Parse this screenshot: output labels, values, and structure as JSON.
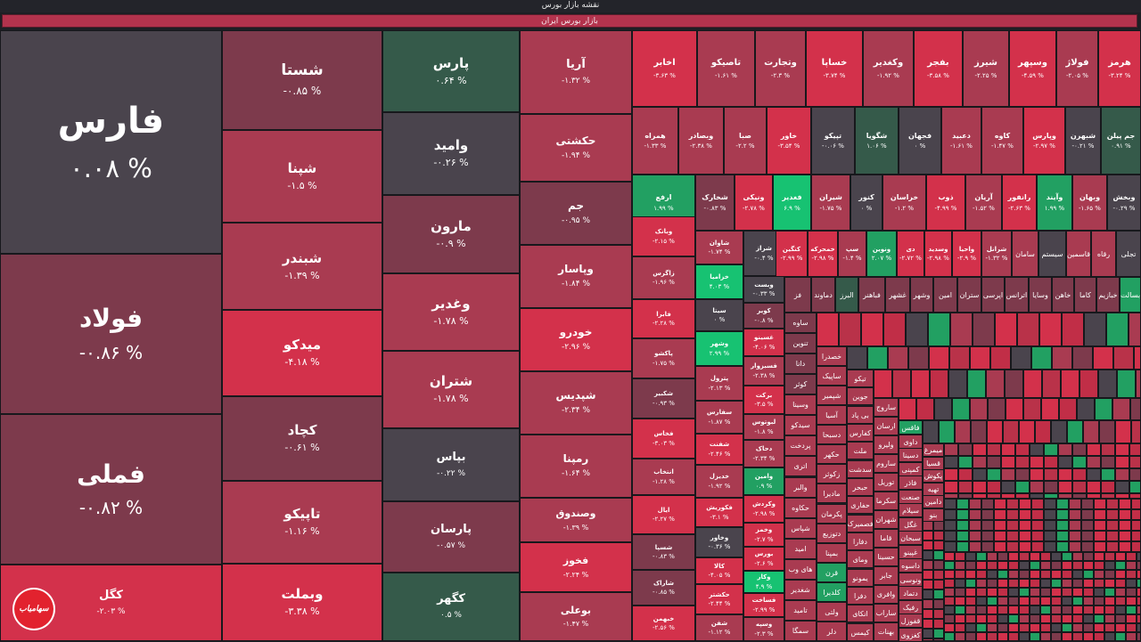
{
  "header": {
    "title": "نقشه بازار بورس"
  },
  "sector": {
    "label": "بازار بورس ایران"
  },
  "logo": {
    "text": "سهامیاب"
  },
  "colors": {
    "neg_strong": "#d3314b",
    "neg_mid": "#a93b51",
    "neg_light": "#7d3a4c",
    "neutral": "#4a444d",
    "pos_light": "#355a4a",
    "pos_strong": "#22a062",
    "pos_bright": "#17c272"
  },
  "big_tiles": [
    {
      "name": "فارس",
      "pct": "۰.۰۸ %",
      "tone": "neutral"
    },
    {
      "name": "فولاد",
      "pct": "-۰.۸۶ %",
      "tone": "neg_light"
    },
    {
      "name": "فملی",
      "pct": "-۰.۸۲ %",
      "tone": "neg_light"
    },
    {
      "name": "کگل",
      "pct": "-۲.۰۳ %",
      "tone": "neg_strong"
    },
    {
      "name": "شستا",
      "pct": "-۰.۸۵ %",
      "tone": "neg_light"
    },
    {
      "name": "شپنا",
      "pct": "-۱.۵ %",
      "tone": "neg_mid"
    },
    {
      "name": "شبندر",
      "pct": "-۱.۳۹ %",
      "tone": "neg_mid"
    },
    {
      "name": "میدکو",
      "pct": "-۴.۱۸ %",
      "tone": "neg_strong"
    },
    {
      "name": "کچاد",
      "pct": "-۰.۶۱ %",
      "tone": "neg_light"
    },
    {
      "name": "تاپیکو",
      "pct": "-۱.۱۶ %",
      "tone": "neg_mid"
    },
    {
      "name": "وبملت",
      "pct": "-۳.۳۸ %",
      "tone": "neg_strong"
    },
    {
      "name": "پارس",
      "pct": "۰.۶۴ %",
      "tone": "pos_light"
    },
    {
      "name": "وامید",
      "pct": "-۰.۲۶ %",
      "tone": "neutral"
    },
    {
      "name": "مارون",
      "pct": "-۰.۹ %",
      "tone": "neg_light"
    },
    {
      "name": "وغدیر",
      "pct": "-۱.۷۸ %",
      "tone": "neg_mid"
    },
    {
      "name": "شتران",
      "pct": "-۱.۷۸ %",
      "tone": "neg_mid"
    },
    {
      "name": "بپاس",
      "pct": "-۰.۲۲ %",
      "tone": "neutral"
    },
    {
      "name": "پارسان",
      "pct": "-۰.۵۷ %",
      "tone": "neg_light"
    },
    {
      "name": "کگهر",
      "pct": "۰.۵ %",
      "tone": "pos_light"
    },
    {
      "name": "آریا",
      "pct": "-۱.۳۲ %",
      "tone": "neg_mid"
    },
    {
      "name": "حکشتی",
      "pct": "-۱.۹۴ %",
      "tone": "neg_mid"
    },
    {
      "name": "جم",
      "pct": "-۰.۹۵ %",
      "tone": "neg_light"
    },
    {
      "name": "وپاسار",
      "pct": "-۱.۸۴ %",
      "tone": "neg_mid"
    },
    {
      "name": "خودرو",
      "pct": "-۲.۹۶ %",
      "tone": "neg_strong"
    },
    {
      "name": "شپدیس",
      "pct": "-۲.۳۴ %",
      "tone": "neg_mid"
    },
    {
      "name": "رمپنا",
      "pct": "-۱.۶۴ %",
      "tone": "neg_mid"
    },
    {
      "name": "وصندوق",
      "pct": "-۱.۳۹ %",
      "tone": "neg_mid"
    },
    {
      "name": "فخوز",
      "pct": "-۲.۲۴ %",
      "tone": "neg_strong"
    },
    {
      "name": "بوعلی",
      "pct": "-۱.۴۷ %",
      "tone": "neg_mid"
    }
  ],
  "row1": [
    {
      "name": "اخابر",
      "pct": "-۳.۶۳ %",
      "tone": "neg_strong"
    },
    {
      "name": "تاصیکو",
      "pct": "-۱.۶۱ %",
      "tone": "neg_mid"
    },
    {
      "name": "وتجارت",
      "pct": "-۲.۳ %",
      "tone": "neg_mid"
    },
    {
      "name": "خساپا",
      "pct": "-۳.۷۴ %",
      "tone": "neg_strong"
    },
    {
      "name": "وکغدیر",
      "pct": "-۱.۹۲ %",
      "tone": "neg_mid"
    },
    {
      "name": "بفجر",
      "pct": "-۳.۵۸ %",
      "tone": "neg_strong"
    },
    {
      "name": "شیرز",
      "pct": "-۲.۲۵ %",
      "tone": "neg_mid"
    },
    {
      "name": "وسپهر",
      "pct": "-۴.۵۹ %",
      "tone": "neg_strong"
    },
    {
      "name": "فولاژ",
      "pct": "-۲.۰۵ %",
      "tone": "neg_mid"
    },
    {
      "name": "هرمز",
      "pct": "-۳.۲۴ %",
      "tone": "neg_strong"
    }
  ],
  "row2": [
    {
      "name": "همراه",
      "pct": "-۱.۳۳ %",
      "tone": "neg_mid"
    },
    {
      "name": "وبصادر",
      "pct": "-۲.۳۸ %",
      "tone": "neg_mid"
    },
    {
      "name": "صبا",
      "pct": "-۲.۲ %",
      "tone": "neg_mid"
    },
    {
      "name": "خاور",
      "pct": "-۳.۵۴ %",
      "tone": "neg_strong"
    },
    {
      "name": "تپیکو",
      "pct": "-۰.۰۶ %",
      "tone": "neutral"
    },
    {
      "name": "شگویا",
      "pct": "۱.۰۶ %",
      "tone": "pos_light"
    },
    {
      "name": "فجهان",
      "pct": "۰ %",
      "tone": "neutral"
    },
    {
      "name": "دعبید",
      "pct": "-۱.۶۱ %",
      "tone": "neg_mid"
    },
    {
      "name": "کاوه",
      "pct": "-۱.۴۷ %",
      "tone": "neg_mid"
    },
    {
      "name": "وپارس",
      "pct": "-۲.۹۷ %",
      "tone": "neg_strong"
    },
    {
      "name": "شبهرن",
      "pct": "-۰.۲۱ %",
      "tone": "neutral"
    },
    {
      "name": "جم پیلن",
      "pct": "۰.۹۱ %",
      "tone": "pos_light"
    }
  ],
  "row3": [
    {
      "name": "ارفع",
      "pct": "۱.۹۹ %",
      "tone": "pos_strong"
    },
    {
      "name": "شخارک",
      "pct": "-۰.۸۳ %",
      "tone": "neg_light"
    },
    {
      "name": "ونیکی",
      "pct": "-۲.۷۸ %",
      "tone": "neg_strong"
    },
    {
      "name": "فغدیر",
      "pct": "۶.۹ %",
      "tone": "pos_bright"
    },
    {
      "name": "شیران",
      "pct": "-۱.۷۵ %",
      "tone": "neg_mid"
    },
    {
      "name": "کنور",
      "pct": "۰ %",
      "tone": "neutral"
    },
    {
      "name": "خراسان",
      "pct": "-۱.۲ %",
      "tone": "neg_mid"
    },
    {
      "name": "ذوب",
      "pct": "-۴.۹۹ %",
      "tone": "neg_strong"
    },
    {
      "name": "آریان",
      "pct": "-۱.۵۲ %",
      "tone": "neg_mid"
    },
    {
      "name": "رانفور",
      "pct": "-۲.۶۳ %",
      "tone": "neg_strong"
    },
    {
      "name": "وآیند",
      "pct": "۱.۹۹ %",
      "tone": "pos_strong"
    },
    {
      "name": "وبهان",
      "pct": "-۱.۶۵ %",
      "tone": "neg_mid"
    },
    {
      "name": "وبخش",
      "pct": "-۰.۲۹ %",
      "tone": "neutral"
    }
  ],
  "col_a": [
    {
      "name": "وبانک",
      "pct": "-۲.۱۵ %",
      "tone": "neg_strong"
    },
    {
      "name": "زاگرس",
      "pct": "-۱.۹۶ %",
      "tone": "neg_mid"
    },
    {
      "name": "فابرا",
      "pct": "-۲.۲۸ %",
      "tone": "neg_strong"
    },
    {
      "name": "پاکشو",
      "pct": "-۱.۷۵ %",
      "tone": "neg_mid"
    },
    {
      "name": "شکبیر",
      "pct": "-۰.۹۳ %",
      "tone": "neg_light"
    },
    {
      "name": "فخاس",
      "pct": "-۳.۰۳ %",
      "tone": "neg_strong"
    },
    {
      "name": "انتخاب",
      "pct": "-۱.۲۸ %",
      "tone": "neg_mid"
    },
    {
      "name": "ایال",
      "pct": "-۲.۲۷ %",
      "tone": "neg_strong"
    },
    {
      "name": "شسپا",
      "pct": "-۰.۸۳ %",
      "tone": "neg_light"
    },
    {
      "name": "شاراک",
      "pct": "-۰.۸۵ %",
      "tone": "neg_light"
    },
    {
      "name": "خبهمن",
      "pct": "-۲.۵۶ %",
      "tone": "neg_strong"
    }
  ],
  "col_b": [
    {
      "name": "شاوان",
      "pct": "-۱.۷۴ %",
      "tone": "neg_mid"
    },
    {
      "name": "خزامیا",
      "pct": "۴.۰۳ %",
      "tone": "pos_bright"
    },
    {
      "name": "سیتا",
      "pct": "۰ %",
      "tone": "neutral"
    },
    {
      "name": "وشهر",
      "pct": "۲.۹۹ %",
      "tone": "pos_bright"
    },
    {
      "name": "پترول",
      "pct": "-۲.۱۳ %",
      "tone": "neg_mid"
    },
    {
      "name": "سفارس",
      "pct": "-۱.۸۷ %",
      "tone": "neg_mid"
    },
    {
      "name": "شفنت",
      "pct": "-۲.۴۶ %",
      "tone": "neg_strong"
    },
    {
      "name": "خدیزل",
      "pct": "-۱.۹۲ %",
      "tone": "neg_mid"
    },
    {
      "name": "فکوریش",
      "pct": "-۳.۱ %",
      "tone": "neg_strong"
    },
    {
      "name": "وخاور",
      "pct": "-۰.۳۶ %",
      "tone": "neutral"
    },
    {
      "name": "کالا",
      "pct": "-۴.۰۵ %",
      "tone": "neg_strong"
    },
    {
      "name": "حکشتر",
      "pct": "-۲.۴۴ %",
      "tone": "neg_strong"
    },
    {
      "name": "شفن",
      "pct": "-۱.۱۲ %",
      "tone": "neg_mid"
    }
  ],
  "col_c": [
    {
      "name": "شراز",
      "pct": "-۰.۴ %",
      "tone": "neutral"
    },
    {
      "name": "وبست",
      "pct": "-۰.۳۳ %",
      "tone": "neutral"
    },
    {
      "name": "کویر",
      "pct": "-۰.۸ %",
      "tone": "neg_light"
    },
    {
      "name": "غسینو",
      "pct": "-۴.۰۶ %",
      "tone": "neg_strong"
    },
    {
      "name": "فسبزوار",
      "pct": "-۲.۳۸ %",
      "tone": "neg_mid"
    },
    {
      "name": "برکت",
      "pct": "-۳.۵ %",
      "tone": "neg_strong"
    },
    {
      "name": "لبوتوس",
      "pct": "-۱.۸ %",
      "tone": "neg_mid"
    },
    {
      "name": "دحاک",
      "pct": "-۲.۳۴ %",
      "tone": "neg_mid"
    },
    {
      "name": "وامین",
      "pct": "۰.۹ %",
      "tone": "pos_strong"
    },
    {
      "name": "وکردش",
      "pct": "-۲.۹۸ %",
      "tone": "neg_strong"
    },
    {
      "name": "وخمز",
      "pct": "-۲.۷ %",
      "tone": "neg_strong"
    },
    {
      "name": "بورس",
      "pct": "-۲.۶ %",
      "tone": "neg_strong"
    },
    {
      "name": "وکار",
      "pct": "۴.۹ %",
      "tone": "pos_bright"
    },
    {
      "name": "فساخت",
      "pct": "-۲.۹۹ %",
      "tone": "neg_strong"
    },
    {
      "name": "وسپه",
      "pct": "-۲.۳ %",
      "tone": "neg_mid"
    }
  ],
  "row4": [
    {
      "name": "کنگین",
      "pct": "-۲.۹۹ %",
      "tone": "neg_strong"
    },
    {
      "name": "خمحرکه",
      "pct": "-۲.۹۸ %",
      "tone": "neg_strong"
    },
    {
      "name": "سپ",
      "pct": "-۱.۴ %",
      "tone": "neg_mid"
    },
    {
      "name": "ونوین",
      "pct": "۲.۰۷ %",
      "tone": "pos_strong"
    },
    {
      "name": "دی",
      "pct": "-۲.۷۲ %",
      "tone": "neg_strong"
    },
    {
      "name": "وسدید",
      "pct": "-۲.۹۸ %",
      "tone": "neg_strong"
    },
    {
      "name": "واحیا",
      "pct": "-۲.۹ %",
      "tone": "neg_strong"
    },
    {
      "name": "شرانل",
      "pct": "-۱.۳۲ %",
      "tone": "neg_mid"
    }
  ],
  "row4_small": [
    {
      "name": "سامان",
      "tone": "neg_mid"
    },
    {
      "name": "سیستم",
      "tone": "neutral"
    },
    {
      "name": "قاسمین",
      "tone": "neg_mid"
    },
    {
      "name": "رقاه",
      "tone": "neg_mid"
    },
    {
      "name": "تجلی",
      "tone": "neutral"
    }
  ],
  "row5": [
    {
      "name": "فز",
      "tone": "neg_light"
    },
    {
      "name": "دماوند",
      "tone": "neg_light"
    },
    {
      "name": "البرز",
      "tone": "pos_light"
    },
    {
      "name": "فباهنر",
      "tone": "neg_light"
    },
    {
      "name": "غشهر",
      "tone": "neg_light"
    },
    {
      "name": "وشهر",
      "tone": "neg_light"
    },
    {
      "name": "امین",
      "tone": "neg_light"
    },
    {
      "name": "ستران",
      "tone": "neg_light"
    },
    {
      "name": "اپرسی",
      "tone": "neg_light"
    },
    {
      "name": "اترانس",
      "tone": "neg_light"
    },
    {
      "name": "وسایا",
      "tone": "neg_light"
    },
    {
      "name": "خاهن",
      "tone": "neg_light"
    },
    {
      "name": "کاما",
      "tone": "neg_light"
    },
    {
      "name": "خبازیم",
      "tone": "neg_light"
    },
    {
      "name": "بسالت",
      "tone": "pos_strong"
    }
  ],
  "col_d": [
    {
      "name": "ساوه",
      "tone": "neg_light"
    },
    {
      "name": "تنوین",
      "tone": "neg_light"
    },
    {
      "name": "دانا",
      "tone": "neg_light"
    },
    {
      "name": "کوثر",
      "tone": "neg_light"
    },
    {
      "name": "وسینا",
      "tone": "neg_mid"
    },
    {
      "name": "سیدکو",
      "tone": "neg_mid"
    },
    {
      "name": "پردخت",
      "tone": "neg_mid"
    },
    {
      "name": "اتری",
      "tone": "neg_mid"
    },
    {
      "name": "والبر",
      "tone": "neg_mid"
    },
    {
      "name": "حکاوه",
      "tone": "neg_mid"
    },
    {
      "name": "شپاس",
      "tone": "neg_mid"
    },
    {
      "name": "امید",
      "tone": "neg_mid"
    },
    {
      "name": "های وب",
      "tone": "neg_mid"
    },
    {
      "name": "شغدیر",
      "tone": "neg_mid"
    },
    {
      "name": "تامید",
      "tone": "neg_mid"
    },
    {
      "name": "سمگا",
      "tone": "neg_mid"
    }
  ],
  "col_e": [
    {
      "name": "خصدرا",
      "tone": "neg_mid"
    },
    {
      "name": "ساپیک",
      "tone": "neg_mid"
    },
    {
      "name": "شپمیر",
      "tone": "neg_mid"
    },
    {
      "name": "آسیا",
      "tone": "neg_mid"
    },
    {
      "name": "دسبحا",
      "tone": "neg_mid"
    },
    {
      "name": "حکهر",
      "tone": "neg_mid"
    },
    {
      "name": "زکوثر",
      "tone": "neg_mid"
    },
    {
      "name": "مادیرا",
      "tone": "neg_mid"
    },
    {
      "name": "پکرمان",
      "tone": "neg_mid"
    },
    {
      "name": "دتوزیع",
      "tone": "neg_mid"
    },
    {
      "name": "بمپنا",
      "tone": "neg_mid"
    },
    {
      "name": "قرن",
      "tone": "pos_strong"
    },
    {
      "name": "کلدیرا",
      "tone": "pos_strong"
    },
    {
      "name": "ولتی",
      "tone": "neg_mid"
    },
    {
      "name": "دلر",
      "tone": "neg_mid"
    }
  ],
  "col_f": [
    {
      "name": "تیکو",
      "tone": "neg_mid"
    },
    {
      "name": "جوین",
      "tone": "neg_mid"
    },
    {
      "name": "بی پاد",
      "tone": "neg_mid"
    },
    {
      "name": "کفارس",
      "tone": "neg_mid"
    },
    {
      "name": "ملت",
      "tone": "neg_mid"
    },
    {
      "name": "سدشت",
      "tone": "neg_mid"
    },
    {
      "name": "حبحر",
      "tone": "neg_mid"
    },
    {
      "name": "حفاری",
      "tone": "neg_mid"
    },
    {
      "name": "فصمیرک",
      "tone": "neg_mid"
    },
    {
      "name": "دفارا",
      "tone": "neg_mid"
    },
    {
      "name": "ومای",
      "tone": "neg_mid"
    },
    {
      "name": "یمونو",
      "tone": "neg_mid"
    },
    {
      "name": "دفرا",
      "tone": "neg_mid"
    },
    {
      "name": "انکای",
      "tone": "neg_mid"
    },
    {
      "name": "کیمس",
      "tone": "neg_mid"
    }
  ],
  "col_g": [
    {
      "name": "ساروج",
      "tone": "neg_mid"
    },
    {
      "name": "ارسان",
      "tone": "neg_mid"
    },
    {
      "name": "ولیرو",
      "tone": "neg_mid"
    },
    {
      "name": "ساروم",
      "tone": "neg_mid"
    },
    {
      "name": "توریل",
      "tone": "neg_mid"
    },
    {
      "name": "سکرما",
      "tone": "neg_mid"
    },
    {
      "name": "شهران",
      "tone": "neg_mid"
    },
    {
      "name": "قاما",
      "tone": "neg_mid"
    },
    {
      "name": "حسینا",
      "tone": "neg_mid"
    },
    {
      "name": "جابر",
      "tone": "neg_mid"
    },
    {
      "name": "وافری",
      "tone": "neg_mid"
    },
    {
      "name": "ساراب",
      "tone": "neg_mid"
    },
    {
      "name": "بهنات",
      "tone": "neg_mid"
    }
  ],
  "col_h": [
    {
      "name": "فاقس",
      "tone": "pos_strong"
    },
    {
      "name": "داوی",
      "tone": "neg_mid"
    },
    {
      "name": "دسینا",
      "tone": "neg_mid"
    },
    {
      "name": "کمپنی",
      "tone": "neg_mid"
    },
    {
      "name": "فاذر",
      "tone": "neg_mid"
    },
    {
      "name": "صنعت",
      "tone": "neg_mid"
    },
    {
      "name": "سیلام",
      "tone": "neg_mid"
    },
    {
      "name": "غگل",
      "tone": "neg_mid"
    },
    {
      "name": "سبحان",
      "tone": "neg_mid"
    },
    {
      "name": "غپینو",
      "tone": "neg_mid"
    },
    {
      "name": "داسوه",
      "tone": "neg_mid"
    },
    {
      "name": "ونوسی",
      "tone": "neg_mid"
    },
    {
      "name": "دتماد",
      "tone": "neg_mid"
    },
    {
      "name": "رفیک",
      "tone": "neg_mid"
    },
    {
      "name": "قفوزل",
      "tone": "neg_mid"
    },
    {
      "name": "کغزوی",
      "tone": "neg_mid"
    }
  ],
  "col_i": [
    {
      "name": "میمرغ",
      "tone": "neg_mid"
    },
    {
      "name": "قسیا",
      "tone": "neg_mid"
    },
    {
      "name": "پکوش",
      "tone": "neg_mid"
    },
    {
      "name": "تهیه",
      "tone": "neg_mid"
    },
    {
      "name": "دامین",
      "tone": "neg_mid"
    },
    {
      "name": "بنو",
      "tone": "neg_mid"
    }
  ]
}
